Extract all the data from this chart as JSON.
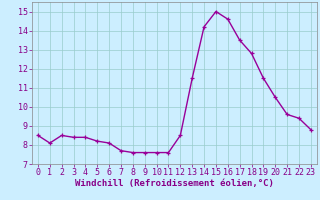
{
  "hours": [
    0,
    1,
    2,
    3,
    4,
    5,
    6,
    7,
    8,
    9,
    10,
    11,
    12,
    13,
    14,
    15,
    16,
    17,
    18,
    19,
    20,
    21,
    22,
    23
  ],
  "values": [
    8.5,
    8.1,
    8.5,
    8.4,
    8.4,
    8.2,
    8.1,
    7.7,
    7.6,
    7.6,
    7.6,
    7.6,
    8.5,
    11.5,
    14.2,
    15.0,
    14.6,
    13.5,
    12.8,
    11.5,
    10.5,
    9.6,
    9.4,
    8.8
  ],
  "line_color": "#990099",
  "marker": "+",
  "marker_size": 3,
  "bg_color": "#cceeff",
  "grid_color": "#99cccc",
  "xlabel": "Windchill (Refroidissement éolien,°C)",
  "xlim": [
    -0.5,
    23.5
  ],
  "ylim": [
    7,
    15.5
  ],
  "yticks": [
    7,
    8,
    9,
    10,
    11,
    12,
    13,
    14,
    15
  ],
  "xticks": [
    0,
    1,
    2,
    3,
    4,
    5,
    6,
    7,
    8,
    9,
    10,
    11,
    12,
    13,
    14,
    15,
    16,
    17,
    18,
    19,
    20,
    21,
    22,
    23
  ],
  "xlabel_fontsize": 6.5,
  "tick_fontsize": 6,
  "line_width": 1.0,
  "label_color": "#880088"
}
